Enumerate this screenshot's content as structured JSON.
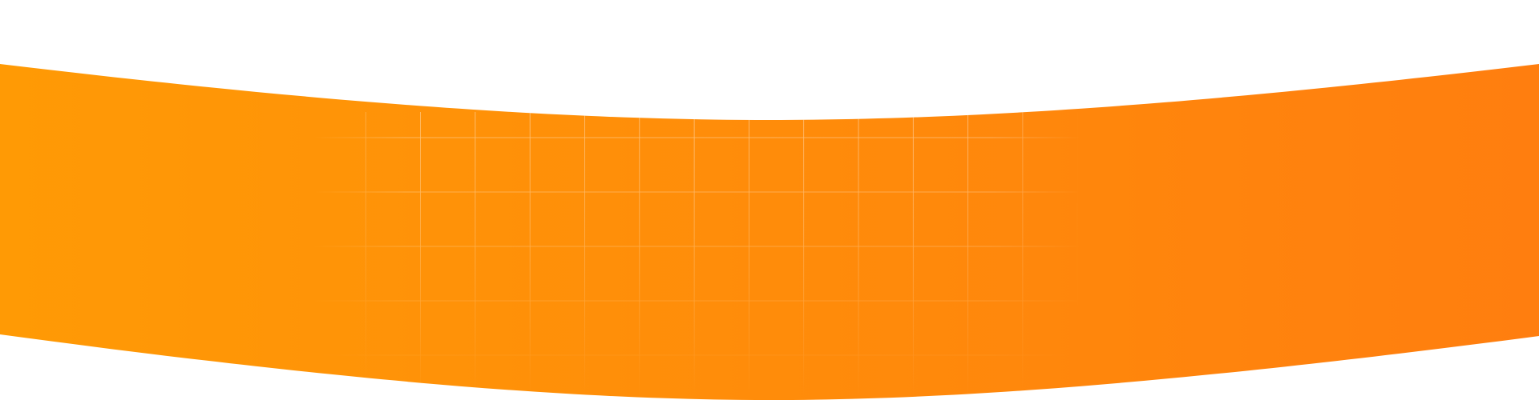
{
  "banner": {
    "gradient_start": "#FF9A05",
    "gradient_end": "#FF7E0F",
    "background": "#FFFFFF",
    "grid_line_color": "#FFFFFF"
  }
}
